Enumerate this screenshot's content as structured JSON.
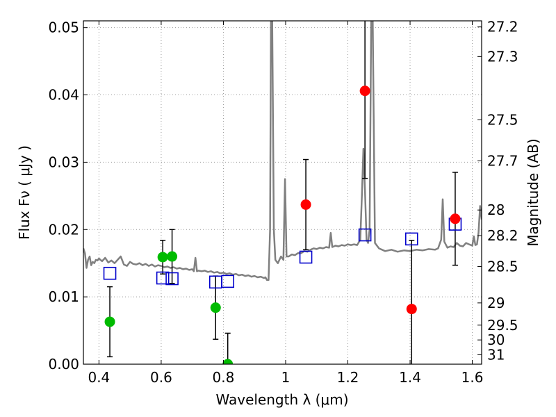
{
  "chart_data": {
    "type": "scatter",
    "xlabel": "Wavelength  λ (μm)",
    "ylabel": "Flux  Fν  ( μJy )",
    "y2label": "Magnitude (AB)",
    "xlim": [
      0.35,
      1.63
    ],
    "ylim": [
      0.0,
      0.051
    ],
    "grid": true,
    "x_ticks": [
      {
        "value": 0.4,
        "label": "0.4"
      },
      {
        "value": 0.6,
        "label": "0.6"
      },
      {
        "value": 0.8,
        "label": "0.8"
      },
      {
        "value": 1.0,
        "label": "1"
      },
      {
        "value": 1.2,
        "label": "1.2"
      },
      {
        "value": 1.4,
        "label": "1.4"
      },
      {
        "value": 1.6,
        "label": "1.6"
      }
    ],
    "y_ticks": [
      {
        "value": 0.0,
        "label": "0.00"
      },
      {
        "value": 0.01,
        "label": "0.01"
      },
      {
        "value": 0.02,
        "label": "0.02"
      },
      {
        "value": 0.03,
        "label": "0.03"
      },
      {
        "value": 0.04,
        "label": "0.04"
      },
      {
        "value": 0.05,
        "label": "0.05"
      }
    ],
    "y2_ticks": [
      {
        "flux": 0.0501,
        "label": "27.2"
      },
      {
        "flux": 0.0457,
        "label": "27.3"
      },
      {
        "flux": 0.0363,
        "label": "27.5"
      },
      {
        "flux": 0.0302,
        "label": "27.7"
      },
      {
        "flux": 0.0229,
        "label": "28"
      },
      {
        "flux": 0.0191,
        "label": "28.2"
      },
      {
        "flux": 0.0145,
        "label": "28.5"
      },
      {
        "flux": 0.0091,
        "label": "29"
      },
      {
        "flux": 0.0058,
        "label": "29.5"
      },
      {
        "flux": 0.0036,
        "label": "30"
      },
      {
        "flux": 0.0014,
        "label": "31"
      }
    ],
    "colors": {
      "green": "#00bb00",
      "red": "#ff0000",
      "model_square": "#0000cc",
      "spectrum": "#808080",
      "errorbar": "#000000",
      "grid": "#999999"
    },
    "observed_green": [
      {
        "x": 0.435,
        "y": 0.0063,
        "err": 0.0052
      },
      {
        "x": 0.605,
        "y": 0.0159,
        "err": 0.0025
      },
      {
        "x": 0.635,
        "y": 0.016,
        "err": 0.004
      },
      {
        "x": 0.775,
        "y": 0.0084,
        "err": 0.0047
      },
      {
        "x": 0.814,
        "y": 0.0,
        "err": 0.0046
      }
    ],
    "observed_red": [
      {
        "x": 1.065,
        "y": 0.0237,
        "err": 0.0067
      },
      {
        "x": 1.255,
        "y": 0.0406,
        "err": 0.013
      },
      {
        "x": 1.405,
        "y": 0.0082,
        "err": 0.0102
      },
      {
        "x": 1.545,
        "y": 0.0216,
        "err": 0.0069
      }
    ],
    "model_points": [
      {
        "x": 0.435,
        "y": 0.0135
      },
      {
        "x": 0.605,
        "y": 0.0128
      },
      {
        "x": 0.635,
        "y": 0.0127
      },
      {
        "x": 0.775,
        "y": 0.0122
      },
      {
        "x": 0.814,
        "y": 0.0123
      },
      {
        "x": 1.065,
        "y": 0.0159
      },
      {
        "x": 1.255,
        "y": 0.0192
      },
      {
        "x": 1.405,
        "y": 0.0186
      },
      {
        "x": 1.545,
        "y": 0.0208
      }
    ],
    "spectrum": [
      [
        0.35,
        0.0172
      ],
      [
        0.355,
        0.0165
      ],
      [
        0.36,
        0.0143
      ],
      [
        0.365,
        0.0155
      ],
      [
        0.37,
        0.016
      ],
      [
        0.375,
        0.0147
      ],
      [
        0.38,
        0.0152
      ],
      [
        0.385,
        0.015
      ],
      [
        0.39,
        0.0155
      ],
      [
        0.395,
        0.0154
      ],
      [
        0.4,
        0.0157
      ],
      [
        0.41,
        0.0153
      ],
      [
        0.42,
        0.0158
      ],
      [
        0.43,
        0.0151
      ],
      [
        0.44,
        0.0154
      ],
      [
        0.45,
        0.015
      ],
      [
        0.46,
        0.0155
      ],
      [
        0.47,
        0.016
      ],
      [
        0.48,
        0.0148
      ],
      [
        0.49,
        0.0146
      ],
      [
        0.5,
        0.0152
      ],
      [
        0.51,
        0.0149
      ],
      [
        0.52,
        0.0148
      ],
      [
        0.53,
        0.015
      ],
      [
        0.54,
        0.0147
      ],
      [
        0.55,
        0.0149
      ],
      [
        0.56,
        0.0146
      ],
      [
        0.57,
        0.0148
      ],
      [
        0.58,
        0.0145
      ],
      [
        0.59,
        0.0147
      ],
      [
        0.6,
        0.0146
      ],
      [
        0.61,
        0.0144
      ],
      [
        0.62,
        0.0145
      ],
      [
        0.63,
        0.0143
      ],
      [
        0.64,
        0.0144
      ],
      [
        0.65,
        0.0142
      ],
      [
        0.66,
        0.0143
      ],
      [
        0.67,
        0.0141
      ],
      [
        0.68,
        0.0142
      ],
      [
        0.69,
        0.014
      ],
      [
        0.7,
        0.0141
      ],
      [
        0.705,
        0.0138
      ],
      [
        0.71,
        0.0158
      ],
      [
        0.715,
        0.0138
      ],
      [
        0.72,
        0.0139
      ],
      [
        0.73,
        0.0138
      ],
      [
        0.74,
        0.0139
      ],
      [
        0.75,
        0.0137
      ],
      [
        0.76,
        0.0138
      ],
      [
        0.77,
        0.0136
      ],
      [
        0.78,
        0.0137
      ],
      [
        0.79,
        0.0135
      ],
      [
        0.8,
        0.0136
      ],
      [
        0.81,
        0.0134
      ],
      [
        0.82,
        0.0135
      ],
      [
        0.83,
        0.0133
      ],
      [
        0.84,
        0.0134
      ],
      [
        0.85,
        0.0132
      ],
      [
        0.86,
        0.0133
      ],
      [
        0.87,
        0.0131
      ],
      [
        0.88,
        0.0132
      ],
      [
        0.89,
        0.013
      ],
      [
        0.9,
        0.0131
      ],
      [
        0.91,
        0.0129
      ],
      [
        0.92,
        0.013
      ],
      [
        0.93,
        0.0128
      ],
      [
        0.935,
        0.0129
      ],
      [
        0.94,
        0.0125
      ],
      [
        0.945,
        0.0125
      ],
      [
        0.95,
        0.02
      ],
      [
        0.953,
        0.051
      ],
      [
        0.957,
        0.051
      ],
      [
        0.962,
        0.02
      ],
      [
        0.967,
        0.0155
      ],
      [
        0.975,
        0.015
      ],
      [
        0.985,
        0.016
      ],
      [
        0.993,
        0.0155
      ],
      [
        0.998,
        0.0275
      ],
      [
        1.003,
        0.016
      ],
      [
        1.01,
        0.016
      ],
      [
        1.02,
        0.0163
      ],
      [
        1.03,
        0.0162
      ],
      [
        1.04,
        0.0165
      ],
      [
        1.05,
        0.0165
      ],
      [
        1.06,
        0.0168
      ],
      [
        1.07,
        0.0167
      ],
      [
        1.08,
        0.017
      ],
      [
        1.09,
        0.0172
      ],
      [
        1.1,
        0.0171
      ],
      [
        1.11,
        0.0173
      ],
      [
        1.12,
        0.0172
      ],
      [
        1.13,
        0.0174
      ],
      [
        1.14,
        0.0173
      ],
      [
        1.145,
        0.0195
      ],
      [
        1.15,
        0.0174
      ],
      [
        1.16,
        0.0176
      ],
      [
        1.17,
        0.0175
      ],
      [
        1.18,
        0.0177
      ],
      [
        1.19,
        0.0176
      ],
      [
        1.2,
        0.0178
      ],
      [
        1.21,
        0.0177
      ],
      [
        1.22,
        0.0178
      ],
      [
        1.23,
        0.0177
      ],
      [
        1.24,
        0.0185
      ],
      [
        1.245,
        0.025
      ],
      [
        1.25,
        0.032
      ],
      [
        1.255,
        0.026
      ],
      [
        1.26,
        0.0185
      ],
      [
        1.265,
        0.018
      ],
      [
        1.27,
        0.02
      ],
      [
        1.275,
        0.051
      ],
      [
        1.28,
        0.051
      ],
      [
        1.287,
        0.018
      ],
      [
        1.3,
        0.0172
      ],
      [
        1.32,
        0.0168
      ],
      [
        1.34,
        0.017
      ],
      [
        1.36,
        0.0167
      ],
      [
        1.38,
        0.0169
      ],
      [
        1.4,
        0.0168
      ],
      [
        1.42,
        0.017
      ],
      [
        1.44,
        0.0169
      ],
      [
        1.46,
        0.0171
      ],
      [
        1.48,
        0.017
      ],
      [
        1.49,
        0.0172
      ],
      [
        1.5,
        0.0185
      ],
      [
        1.505,
        0.0245
      ],
      [
        1.51,
        0.0182
      ],
      [
        1.52,
        0.0173
      ],
      [
        1.53,
        0.0175
      ],
      [
        1.54,
        0.0174
      ],
      [
        1.55,
        0.018
      ],
      [
        1.56,
        0.0176
      ],
      [
        1.57,
        0.0175
      ],
      [
        1.58,
        0.018
      ],
      [
        1.59,
        0.0178
      ],
      [
        1.6,
        0.0176
      ],
      [
        1.605,
        0.019
      ],
      [
        1.61,
        0.0177
      ],
      [
        1.615,
        0.0178
      ],
      [
        1.62,
        0.0195
      ],
      [
        1.625,
        0.0235
      ],
      [
        1.63,
        0.0215
      ]
    ]
  }
}
